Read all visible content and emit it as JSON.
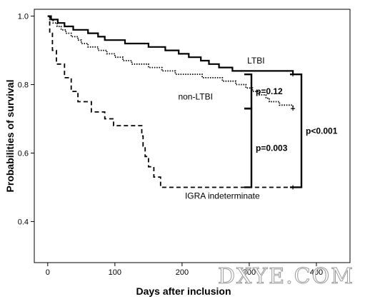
{
  "chart_data": {
    "type": "line",
    "subtype": "kaplan-meier step",
    "xlabel": "Days after inclusion",
    "ylabel": "Probabilities of survival",
    "xlim": [
      -20,
      450
    ],
    "ylim": [
      0.28,
      1.02
    ],
    "xticks": [
      0,
      100,
      200,
      300,
      400
    ],
    "xtick_labels": [
      "0",
      "100",
      "200",
      "300",
      "400"
    ],
    "yticks": [
      0.4,
      0.6,
      0.8,
      1.0
    ],
    "ytick_labels": [
      "0.4",
      "0.6",
      "0.8",
      "1.0"
    ],
    "grid": false,
    "legend": "none (series labelled directly on plot)",
    "series": [
      {
        "name": "LTBI",
        "style": "solid",
        "color": "#000000",
        "points": [
          [
            0,
            1.0
          ],
          [
            5,
            0.99
          ],
          [
            15,
            0.98
          ],
          [
            25,
            0.97
          ],
          [
            38,
            0.96
          ],
          [
            60,
            0.95
          ],
          [
            75,
            0.94
          ],
          [
            85,
            0.93
          ],
          [
            115,
            0.92
          ],
          [
            150,
            0.91
          ],
          [
            175,
            0.9
          ],
          [
            195,
            0.89
          ],
          [
            210,
            0.88
          ],
          [
            228,
            0.87
          ],
          [
            240,
            0.86
          ],
          [
            255,
            0.85
          ],
          [
            275,
            0.84
          ],
          [
            300,
            0.84
          ],
          [
            360,
            0.84
          ],
          [
            365,
            0.83
          ]
        ]
      },
      {
        "name": "non-LTBI",
        "style": "dotted",
        "color": "#000000",
        "points": [
          [
            0,
            1.0
          ],
          [
            3,
            0.99
          ],
          [
            8,
            0.98
          ],
          [
            14,
            0.97
          ],
          [
            20,
            0.96
          ],
          [
            27,
            0.95
          ],
          [
            35,
            0.94
          ],
          [
            45,
            0.93
          ],
          [
            50,
            0.92
          ],
          [
            60,
            0.91
          ],
          [
            75,
            0.9
          ],
          [
            88,
            0.89
          ],
          [
            100,
            0.88
          ],
          [
            112,
            0.87
          ],
          [
            125,
            0.86
          ],
          [
            150,
            0.85
          ],
          [
            170,
            0.84
          ],
          [
            190,
            0.83
          ],
          [
            230,
            0.82
          ],
          [
            260,
            0.81
          ],
          [
            280,
            0.8
          ],
          [
            295,
            0.79
          ],
          [
            305,
            0.78
          ],
          [
            315,
            0.77
          ],
          [
            325,
            0.76
          ],
          [
            330,
            0.75
          ],
          [
            345,
            0.74
          ],
          [
            365,
            0.73
          ]
        ]
      },
      {
        "name": "IGRA indeterminate",
        "style": "dashed",
        "color": "#000000",
        "points": [
          [
            0,
            1.0
          ],
          [
            3,
            0.95
          ],
          [
            7,
            0.9
          ],
          [
            13,
            0.86
          ],
          [
            25,
            0.82
          ],
          [
            35,
            0.78
          ],
          [
            45,
            0.75
          ],
          [
            65,
            0.72
          ],
          [
            85,
            0.7
          ],
          [
            98,
            0.68
          ],
          [
            140,
            0.65
          ],
          [
            142,
            0.62
          ],
          [
            145,
            0.59
          ],
          [
            150,
            0.56
          ],
          [
            158,
            0.53
          ],
          [
            168,
            0.5
          ],
          [
            365,
            0.5
          ]
        ]
      }
    ],
    "series_labels": [
      {
        "text": "LTBI",
        "x": 310,
        "y": 0.87
      },
      {
        "text": "non-LTBI",
        "x": 220,
        "y": 0.765
      },
      {
        "text": "IGRA indeterminate",
        "x": 260,
        "y": 0.475
      }
    ],
    "comparisons": [
      {
        "between": [
          "LTBI",
          "non-LTBI"
        ],
        "label": "p=0.12"
      },
      {
        "between": [
          "non-LTBI",
          "IGRA indeterminate"
        ],
        "label": "p=0.003"
      },
      {
        "between": [
          "LTBI",
          "IGRA indeterminate"
        ],
        "label": "p<0.001"
      }
    ]
  },
  "watermark": "DXYE.COM"
}
